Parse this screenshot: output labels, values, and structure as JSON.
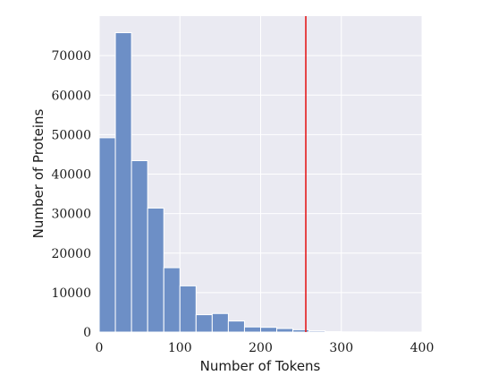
{
  "chart_data": {
    "type": "bar",
    "title": "",
    "xlabel": "Number of Tokens",
    "ylabel": "Number of Proteins",
    "xlim": [
      0,
      400
    ],
    "ylim": [
      0,
      80000
    ],
    "x_ticks": [
      "0",
      "100",
      "200",
      "300",
      "400"
    ],
    "y_ticks": [
      "0",
      "10000",
      "20000",
      "30000",
      "40000",
      "50000",
      "60000",
      "70000"
    ],
    "grid": true,
    "bin_width": 20,
    "bins": [
      {
        "x0": 0,
        "x1": 20,
        "value": 49200
      },
      {
        "x0": 20,
        "x1": 40,
        "value": 75800
      },
      {
        "x0": 40,
        "x1": 60,
        "value": 43400
      },
      {
        "x0": 60,
        "x1": 80,
        "value": 31400
      },
      {
        "x0": 80,
        "x1": 100,
        "value": 16300
      },
      {
        "x0": 100,
        "x1": 120,
        "value": 11700
      },
      {
        "x0": 120,
        "x1": 140,
        "value": 4400
      },
      {
        "x0": 140,
        "x1": 160,
        "value": 4700
      },
      {
        "x0": 160,
        "x1": 180,
        "value": 2800
      },
      {
        "x0": 180,
        "x1": 200,
        "value": 1300
      },
      {
        "x0": 200,
        "x1": 220,
        "value": 1200
      },
      {
        "x0": 220,
        "x1": 240,
        "value": 900
      },
      {
        "x0": 240,
        "x1": 260,
        "value": 600
      },
      {
        "x0": 260,
        "x1": 280,
        "value": 300
      },
      {
        "x0": 280,
        "x1": 300,
        "value": 120
      },
      {
        "x0": 300,
        "x1": 320,
        "value": 60
      },
      {
        "x0": 320,
        "x1": 340,
        "value": 40
      },
      {
        "x0": 340,
        "x1": 360,
        "value": 20
      },
      {
        "x0": 360,
        "x1": 380,
        "value": 10
      },
      {
        "x0": 380,
        "x1": 400,
        "value": 5
      }
    ],
    "vline": {
      "x": 256,
      "color": "#e41a1c"
    },
    "colors": {
      "bar": "#6d8fc6",
      "bar_edge": "#ffffff",
      "plot_background": "#eaeaf2",
      "grid": "#ffffff"
    }
  }
}
